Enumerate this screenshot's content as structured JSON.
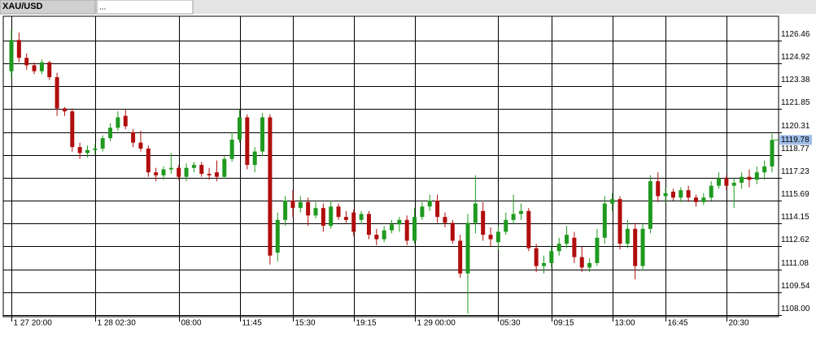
{
  "tabs": [
    "XAU/USD",
    "..."
  ],
  "chart_data": {
    "type": "candlestick",
    "title": "XAU/USD",
    "up_color": "#1f9a1f",
    "down_color": "#b00d0d",
    "grid": true,
    "last_price": 1119.78,
    "ylim": [
      1107.89,
      1128.1
    ],
    "yticks": [
      {
        "value": 1108,
        "label": "1108.00"
      },
      1109.54,
      1111.08,
      1112.62,
      1114.15,
      1115.69,
      1117.23,
      1118.77,
      1120.31,
      1121.85,
      1123.38,
      1124.92,
      1126.46
    ],
    "categories": [
      "1 27 20:00",
      null,
      null,
      null,
      null,
      null,
      null,
      null,
      null,
      null,
      null,
      "1 28 02:30",
      null,
      null,
      null,
      null,
      null,
      null,
      null,
      null,
      null,
      null,
      "08:00",
      null,
      null,
      null,
      null,
      null,
      null,
      null,
      "11:45",
      null,
      null,
      null,
      null,
      null,
      null,
      "15:30",
      null,
      null,
      null,
      null,
      null,
      null,
      null,
      "19:15",
      null,
      null,
      null,
      null,
      null,
      null,
      null,
      "1 29 00:00",
      null,
      null,
      null,
      null,
      null,
      null,
      null,
      null,
      null,
      null,
      "05:30",
      null,
      null,
      null,
      null,
      null,
      null,
      "09:15",
      null,
      null,
      null,
      null,
      null,
      null,
      null,
      "13:00",
      null,
      null,
      null,
      null,
      null,
      null,
      "16:45",
      null,
      null,
      null,
      null,
      null,
      null,
      null,
      "20:30",
      null,
      null,
      null,
      null,
      null,
      null
    ],
    "open": [
      1124.4,
      1126.5,
      1125.3,
      1124.8,
      1124.4,
      1125.0,
      1124.0,
      1121.9,
      1121.7,
      1119.3,
      1118.9,
      1119.1,
      1119.2,
      1119.9,
      1120.6,
      1121.4,
      1120.3,
      1119.6,
      1119.2,
      1117.6,
      1117.4,
      1117.8,
      1117.9,
      1117.3,
      1117.9,
      1118.1,
      1117.5,
      1117.6,
      1117.3,
      1118.5,
      1119.8,
      1121.3,
      1118.1,
      1119.0,
      1121.3,
      1112.2,
      1114.4,
      1115.7,
      1115.2,
      1115.6,
      1114.7,
      1115.2,
      1114.0,
      1115.3,
      1114.6,
      1114.9,
      1114.4,
      1114.8,
      1113.4,
      1113.1,
      1113.7,
      1114.1,
      1114.4,
      1113.0,
      1114.6,
      1115.3,
      1115.7,
      1114.6,
      1114.2,
      1113.0,
      1110.8,
      1114.2,
      1115.0,
      1113.4,
      1112.9,
      1113.6,
      1114.4,
      1114.8,
      1115.0,
      1112.5,
      1111.3,
      1111.5,
      1112.3,
      1112.8,
      1113.2,
      1111.9,
      1111.2,
      1111.5,
      1113.2,
      1115.5,
      1115.8,
      1112.8,
      1113.8,
      1111.3,
      1113.8,
      1117.0,
      1116.0,
      1116.3,
      1115.9,
      1116.4,
      1115.9,
      1115.6,
      1115.9,
      1116.7,
      1117.2,
      1116.7,
      1116.9,
      1117.3,
      1117.1,
      1117.6,
      1118.0
    ],
    "high": [
      1127.2,
      1127.0,
      1125.6,
      1125.0,
      1125.2,
      1125.1,
      1124.3,
      1122.0,
      1121.9,
      1119.6,
      1119.4,
      1119.5,
      1120.1,
      1120.9,
      1121.7,
      1121.8,
      1120.5,
      1120.4,
      1119.4,
      1117.9,
      1118.0,
      1118.9,
      1118.1,
      1118.2,
      1118.3,
      1118.3,
      1117.9,
      1118.4,
      1118.7,
      1120.3,
      1121.8,
      1121.5,
      1119.3,
      1121.6,
      1121.5,
      1114.9,
      1116.0,
      1116.4,
      1116.0,
      1115.9,
      1115.6,
      1115.5,
      1115.7,
      1115.5,
      1115.0,
      1115.1,
      1115.0,
      1115.0,
      1113.8,
      1114.0,
      1114.4,
      1114.6,
      1114.7,
      1115.2,
      1115.6,
      1116.1,
      1116.1,
      1114.9,
      1114.4,
      1113.4,
      1114.8,
      1117.4,
      1115.6,
      1113.9,
      1114.0,
      1114.9,
      1116.1,
      1115.5,
      1115.2,
      1112.8,
      1112.0,
      1112.6,
      1113.2,
      1114.0,
      1113.6,
      1112.6,
      1111.8,
      1113.8,
      1116.0,
      1116.2,
      1116.0,
      1114.4,
      1114.2,
      1114.2,
      1117.4,
      1117.6,
      1116.6,
      1116.5,
      1116.6,
      1116.7,
      1116.1,
      1116.2,
      1117.0,
      1117.6,
      1117.4,
      1117.2,
      1117.6,
      1117.8,
      1118.0,
      1118.4,
      1120.2
    ],
    "low": [
      1123.9,
      1125.0,
      1124.5,
      1124.2,
      1124.2,
      1123.8,
      1121.4,
      1121.4,
      1119.0,
      1118.5,
      1118.6,
      1118.8,
      1119.0,
      1119.7,
      1120.4,
      1120.5,
      1119.3,
      1119.0,
      1117.3,
      1117.0,
      1117.1,
      1117.5,
      1117.1,
      1117.0,
      1117.6,
      1117.3,
      1117.1,
      1117.0,
      1117.2,
      1118.3,
      1119.6,
      1117.8,
      1117.6,
      1118.7,
      1111.4,
      1111.6,
      1114.0,
      1114.6,
      1114.9,
      1114.0,
      1114.5,
      1113.6,
      1113.8,
      1114.4,
      1114.2,
      1113.3,
      1114.1,
      1113.1,
      1112.7,
      1112.9,
      1113.5,
      1113.6,
      1112.7,
      1112.8,
      1114.4,
      1115.0,
      1114.2,
      1113.9,
      1112.8,
      1110.5,
      1108.1,
      1113.5,
      1113.0,
      1112.6,
      1112.4,
      1113.4,
      1114.1,
      1114.4,
      1112.3,
      1110.9,
      1110.8,
      1111.2,
      1112.0,
      1112.5,
      1111.5,
      1110.9,
      1110.9,
      1111.3,
      1112.8,
      1115.0,
      1112.4,
      1112.5,
      1110.4,
      1111.0,
      1113.5,
      1115.6,
      1115.5,
      1115.7,
      1115.6,
      1115.6,
      1115.3,
      1115.4,
      1115.7,
      1116.5,
      1116.4,
      1115.2,
      1116.5,
      1116.6,
      1116.8,
      1117.1,
      1117.6
    ],
    "close": [
      1126.5,
      1125.3,
      1124.8,
      1124.4,
      1125.0,
      1124.0,
      1121.9,
      1121.7,
      1119.3,
      1118.9,
      1119.1,
      1119.2,
      1119.9,
      1120.6,
      1121.3,
      1120.7,
      1119.6,
      1119.2,
      1117.6,
      1117.4,
      1117.8,
      1117.9,
      1117.3,
      1117.9,
      1118.1,
      1117.5,
      1117.4,
      1117.3,
      1118.5,
      1119.8,
      1121.3,
      1118.1,
      1119.0,
      1121.3,
      1112.0,
      1114.4,
      1115.7,
      1115.2,
      1115.6,
      1114.7,
      1115.2,
      1114.0,
      1115.3,
      1114.6,
      1114.4,
      1113.6,
      1114.8,
      1113.4,
      1113.1,
      1113.7,
      1114.1,
      1114.4,
      1113.0,
      1114.6,
      1115.3,
      1115.7,
      1114.6,
      1114.2,
      1113.0,
      1110.8,
      1114.2,
      1115.5,
      1113.4,
      1113.1,
      1113.6,
      1114.4,
      1114.8,
      1115.0,
      1112.5,
      1111.3,
      1111.5,
      1112.3,
      1112.8,
      1113.4,
      1111.9,
      1111.2,
      1111.5,
      1113.2,
      1115.5,
      1115.8,
      1112.8,
      1113.8,
      1111.3,
      1113.8,
      1117.0,
      1116.0,
      1116.2,
      1115.9,
      1116.4,
      1115.9,
      1115.6,
      1115.9,
      1116.7,
      1117.2,
      1116.7,
      1116.9,
      1117.3,
      1117.1,
      1117.6,
      1118.0,
      1119.78
    ]
  }
}
